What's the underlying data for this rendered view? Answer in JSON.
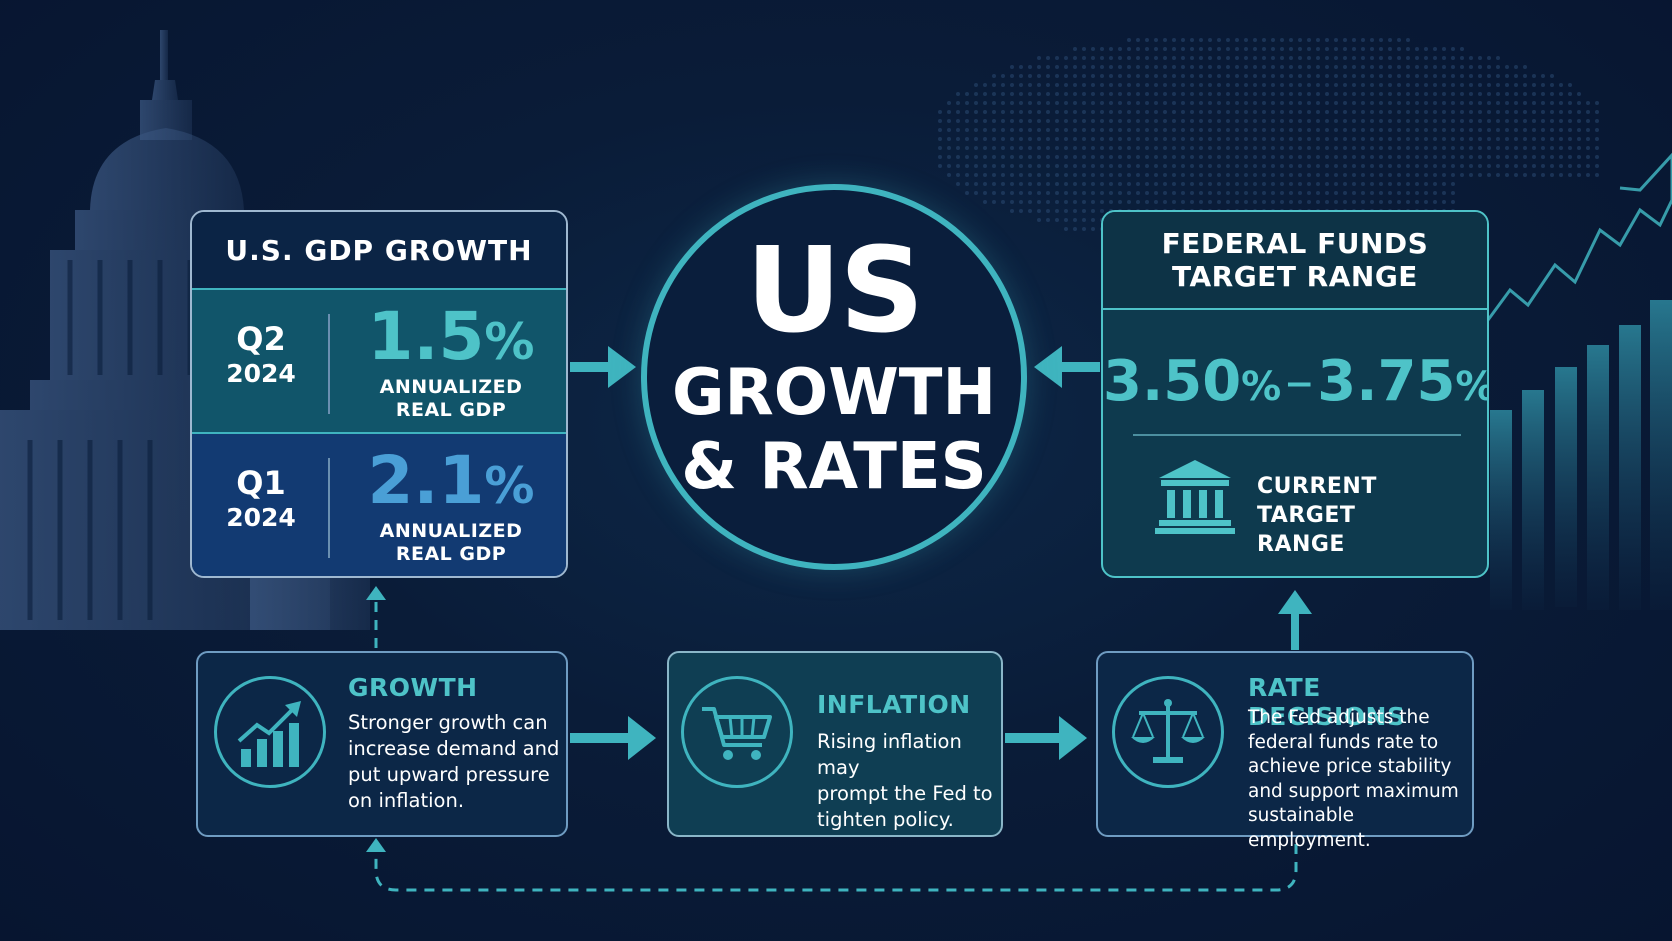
{
  "gdp": {
    "title": "U.S. GDP GROWTH",
    "rows": [
      {
        "quarter": "Q2",
        "year": "2024",
        "value": "1.5",
        "unit": "%",
        "sub1": "ANNUALIZED",
        "sub2": "REAL GDP",
        "color": "#4ec3c8"
      },
      {
        "quarter": "Q1",
        "year": "2024",
        "value": "2.1",
        "unit": "%",
        "sub1": "ANNUALIZED",
        "sub2": "REAL GDP",
        "color": "#4a9fd6"
      }
    ]
  },
  "center": {
    "line1": "US",
    "line2": "GROWTH",
    "line3": "& RATES"
  },
  "fed": {
    "title1": "FEDERAL FUNDS",
    "title2": "TARGET RANGE",
    "low": "3.50",
    "high": "3.75",
    "unit": "%",
    "dash": "–",
    "note1": "CURRENT TARGET",
    "note2": "RANGE"
  },
  "growth_box": {
    "heading": "GROWTH",
    "lines": [
      "Stronger growth can",
      "increase demand and",
      "put upward pressure",
      "on inflation."
    ]
  },
  "inflation_box": {
    "heading": "INFLATION",
    "lines": [
      "Rising inflation may",
      "prompt the Fed to",
      "tighten policy."
    ]
  },
  "rate_box": {
    "heading": "RATE DECISIONS",
    "lines": [
      "The Fed adjusts the",
      "federal funds rate to",
      "achieve price stability",
      "and support maximum",
      "sustainable employment."
    ]
  },
  "icons": {
    "growth": "bar-chart-up-icon",
    "inflation": "shopping-cart-icon",
    "rate": "balance-scale-icon",
    "fed": "bank-building-icon"
  },
  "colors": {
    "accent": "#3fb4bf",
    "accent_light": "#4ec3c8",
    "background": "#0a1c38",
    "blue_value": "#4a9fd6"
  }
}
